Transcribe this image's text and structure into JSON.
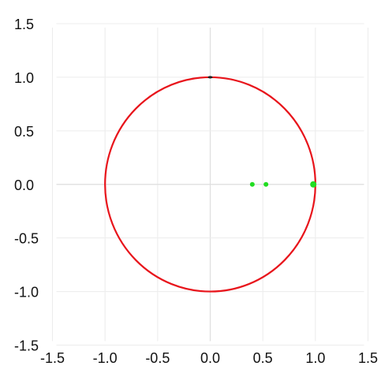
{
  "chart_data": {
    "type": "scatter",
    "title": "",
    "xlabel": "",
    "ylabel": "",
    "xlim": [
      -1.5,
      1.5
    ],
    "ylim": [
      -1.5,
      1.5
    ],
    "x_ticks": [
      -1.5,
      -1.0,
      -0.5,
      0.0,
      0.5,
      1.0,
      1.5
    ],
    "y_ticks": [
      1.5,
      1.0,
      0.5,
      0.0,
      -0.5,
      -1.0,
      -1.5
    ],
    "x_tick_labels": [
      "-1.5",
      "-1.0",
      "-0.5",
      "0.0",
      "0.5",
      "1.0",
      "1.5"
    ],
    "y_tick_labels": [
      "1.5",
      "1.0",
      "0.5",
      "0.0",
      "-0.5",
      "-1.0",
      "-1.5"
    ],
    "grid": true,
    "legend": "none",
    "circle": {
      "center": [
        0,
        0
      ],
      "radius": 1.0,
      "color": "#e8141b"
    },
    "points": [
      {
        "x": 0.4,
        "y": 0.0
      },
      {
        "x": 0.53,
        "y": 0.0
      },
      {
        "x": 0.98,
        "y": 0.0
      }
    ],
    "point_color": "#22dd22",
    "marker_top": {
      "x": 0.0,
      "y": 1.0,
      "color": "#222222"
    },
    "grid_color": "#ececec",
    "axis_line_color": "#dedede"
  }
}
